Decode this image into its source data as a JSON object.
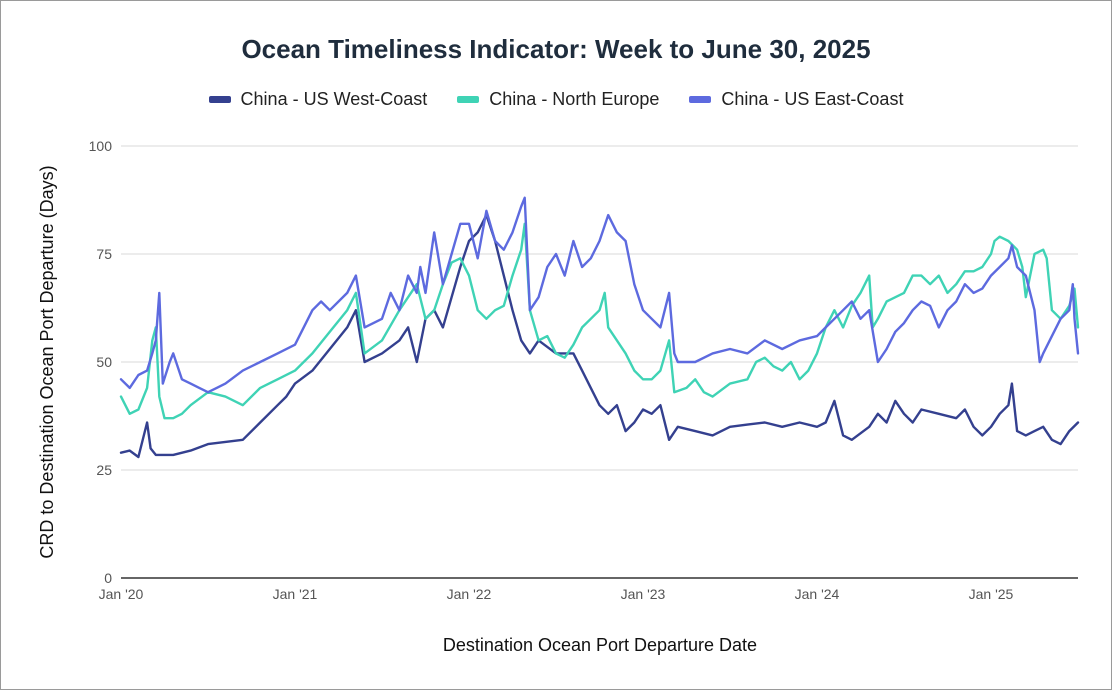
{
  "chart_data": {
    "type": "line",
    "title": "Ocean Timeliness Indicator: Week to June 30, 2025",
    "xlabel": "Destination Ocean Port Departure Date",
    "ylabel": "CRD to Destination Ocean Port Departure (Days)",
    "ylim": [
      0,
      100
    ],
    "yticks": [
      0,
      25,
      50,
      75,
      100
    ],
    "xlim": [
      2020.0,
      2025.5
    ],
    "xticks": [
      {
        "value": 2020.0,
        "label": "Jan '20"
      },
      {
        "value": 2021.0,
        "label": "Jan '21"
      },
      {
        "value": 2022.0,
        "label": "Jan '22"
      },
      {
        "value": 2023.0,
        "label": "Jan '23"
      },
      {
        "value": 2024.0,
        "label": "Jan '24"
      },
      {
        "value": 2025.0,
        "label": "Jan '25"
      }
    ],
    "grid": true,
    "legend_position": "top",
    "series": [
      {
        "name": "China - US West-Coast",
        "color": "#34408f",
        "points": [
          [
            2020.0,
            29
          ],
          [
            2020.05,
            29.5
          ],
          [
            2020.1,
            28
          ],
          [
            2020.15,
            36
          ],
          [
            2020.17,
            30
          ],
          [
            2020.2,
            28.5
          ],
          [
            2020.3,
            28.5
          ],
          [
            2020.4,
            29.5
          ],
          [
            2020.5,
            31
          ],
          [
            2020.6,
            31.5
          ],
          [
            2020.7,
            32
          ],
          [
            2020.8,
            36
          ],
          [
            2020.9,
            40
          ],
          [
            2020.95,
            42
          ],
          [
            2021.0,
            45
          ],
          [
            2021.1,
            48
          ],
          [
            2021.2,
            53
          ],
          [
            2021.3,
            58
          ],
          [
            2021.35,
            62
          ],
          [
            2021.4,
            50
          ],
          [
            2021.5,
            52
          ],
          [
            2021.6,
            55
          ],
          [
            2021.65,
            58
          ],
          [
            2021.7,
            50
          ],
          [
            2021.75,
            60
          ],
          [
            2021.8,
            62
          ],
          [
            2021.85,
            58
          ],
          [
            2021.9,
            65
          ],
          [
            2021.95,
            72
          ],
          [
            2022.0,
            78
          ],
          [
            2022.05,
            80
          ],
          [
            2022.1,
            84
          ],
          [
            2022.15,
            78
          ],
          [
            2022.2,
            70
          ],
          [
            2022.25,
            62
          ],
          [
            2022.3,
            55
          ],
          [
            2022.35,
            52
          ],
          [
            2022.4,
            55
          ],
          [
            2022.5,
            52
          ],
          [
            2022.6,
            52
          ],
          [
            2022.65,
            48
          ],
          [
            2022.7,
            44
          ],
          [
            2022.75,
            40
          ],
          [
            2022.8,
            38
          ],
          [
            2022.85,
            40
          ],
          [
            2022.9,
            34
          ],
          [
            2022.95,
            36
          ],
          [
            2023.0,
            39
          ],
          [
            2023.05,
            38
          ],
          [
            2023.1,
            40
          ],
          [
            2023.15,
            32
          ],
          [
            2023.2,
            35
          ],
          [
            2023.3,
            34
          ],
          [
            2023.4,
            33
          ],
          [
            2023.5,
            35
          ],
          [
            2023.6,
            35.5
          ],
          [
            2023.7,
            36
          ],
          [
            2023.8,
            35
          ],
          [
            2023.9,
            36
          ],
          [
            2024.0,
            35
          ],
          [
            2024.05,
            36
          ],
          [
            2024.1,
            41
          ],
          [
            2024.15,
            33
          ],
          [
            2024.2,
            32
          ],
          [
            2024.3,
            35
          ],
          [
            2024.35,
            38
          ],
          [
            2024.4,
            36
          ],
          [
            2024.45,
            41
          ],
          [
            2024.5,
            38
          ],
          [
            2024.55,
            36
          ],
          [
            2024.6,
            39
          ],
          [
            2024.7,
            38
          ],
          [
            2024.8,
            37
          ],
          [
            2024.85,
            39
          ],
          [
            2024.9,
            35
          ],
          [
            2024.95,
            33
          ],
          [
            2025.0,
            35
          ],
          [
            2025.05,
            38
          ],
          [
            2025.1,
            40
          ],
          [
            2025.12,
            45
          ],
          [
            2025.15,
            34
          ],
          [
            2025.2,
            33
          ],
          [
            2025.25,
            34
          ],
          [
            2025.3,
            35
          ],
          [
            2025.35,
            32
          ],
          [
            2025.4,
            31
          ],
          [
            2025.45,
            34
          ],
          [
            2025.5,
            36
          ]
        ]
      },
      {
        "name": "China - North Europe",
        "color": "#3fd3b5",
        "points": [
          [
            2020.0,
            42
          ],
          [
            2020.05,
            38
          ],
          [
            2020.1,
            39
          ],
          [
            2020.15,
            44
          ],
          [
            2020.18,
            55
          ],
          [
            2020.2,
            58
          ],
          [
            2020.22,
            42
          ],
          [
            2020.25,
            37
          ],
          [
            2020.3,
            37
          ],
          [
            2020.35,
            38
          ],
          [
            2020.4,
            40
          ],
          [
            2020.5,
            43
          ],
          [
            2020.6,
            42
          ],
          [
            2020.7,
            40
          ],
          [
            2020.8,
            44
          ],
          [
            2020.9,
            46
          ],
          [
            2021.0,
            48
          ],
          [
            2021.1,
            52
          ],
          [
            2021.2,
            57
          ],
          [
            2021.3,
            62
          ],
          [
            2021.35,
            66
          ],
          [
            2021.4,
            52
          ],
          [
            2021.5,
            55
          ],
          [
            2021.6,
            62
          ],
          [
            2021.7,
            68
          ],
          [
            2021.75,
            60
          ],
          [
            2021.8,
            62
          ],
          [
            2021.85,
            68
          ],
          [
            2021.9,
            73
          ],
          [
            2021.95,
            74
          ],
          [
            2022.0,
            70
          ],
          [
            2022.05,
            62
          ],
          [
            2022.1,
            60
          ],
          [
            2022.15,
            62
          ],
          [
            2022.2,
            63
          ],
          [
            2022.25,
            70
          ],
          [
            2022.3,
            76
          ],
          [
            2022.32,
            82
          ],
          [
            2022.35,
            62
          ],
          [
            2022.4,
            55
          ],
          [
            2022.45,
            56
          ],
          [
            2022.5,
            52
          ],
          [
            2022.55,
            51
          ],
          [
            2022.6,
            54
          ],
          [
            2022.65,
            58
          ],
          [
            2022.7,
            60
          ],
          [
            2022.75,
            62
          ],
          [
            2022.78,
            66
          ],
          [
            2022.8,
            58
          ],
          [
            2022.85,
            55
          ],
          [
            2022.9,
            52
          ],
          [
            2022.95,
            48
          ],
          [
            2023.0,
            46
          ],
          [
            2023.05,
            46
          ],
          [
            2023.1,
            48
          ],
          [
            2023.15,
            55
          ],
          [
            2023.18,
            43
          ],
          [
            2023.25,
            44
          ],
          [
            2023.3,
            46
          ],
          [
            2023.35,
            43
          ],
          [
            2023.4,
            42
          ],
          [
            2023.5,
            45
          ],
          [
            2023.6,
            46
          ],
          [
            2023.65,
            50
          ],
          [
            2023.7,
            51
          ],
          [
            2023.75,
            49
          ],
          [
            2023.8,
            48
          ],
          [
            2023.85,
            50
          ],
          [
            2023.9,
            46
          ],
          [
            2023.95,
            48
          ],
          [
            2024.0,
            52
          ],
          [
            2024.05,
            58
          ],
          [
            2024.1,
            62
          ],
          [
            2024.15,
            58
          ],
          [
            2024.2,
            63
          ],
          [
            2024.25,
            66
          ],
          [
            2024.3,
            70
          ],
          [
            2024.32,
            58
          ],
          [
            2024.35,
            60
          ],
          [
            2024.4,
            64
          ],
          [
            2024.5,
            66
          ],
          [
            2024.55,
            70
          ],
          [
            2024.6,
            70
          ],
          [
            2024.65,
            68
          ],
          [
            2024.7,
            70
          ],
          [
            2024.75,
            66
          ],
          [
            2024.8,
            68
          ],
          [
            2024.85,
            71
          ],
          [
            2024.9,
            71
          ],
          [
            2024.95,
            72
          ],
          [
            2025.0,
            75
          ],
          [
            2025.02,
            78
          ],
          [
            2025.05,
            79
          ],
          [
            2025.1,
            78
          ],
          [
            2025.15,
            76
          ],
          [
            2025.18,
            72
          ],
          [
            2025.2,
            65
          ],
          [
            2025.25,
            75
          ],
          [
            2025.3,
            76
          ],
          [
            2025.32,
            74
          ],
          [
            2025.35,
            62
          ],
          [
            2025.4,
            60
          ],
          [
            2025.45,
            63
          ],
          [
            2025.48,
            67
          ],
          [
            2025.5,
            58
          ]
        ]
      },
      {
        "name": "China - US East-Coast",
        "color": "#5d6adf",
        "points": [
          [
            2020.0,
            46
          ],
          [
            2020.05,
            44
          ],
          [
            2020.1,
            47
          ],
          [
            2020.15,
            48
          ],
          [
            2020.18,
            52
          ],
          [
            2020.2,
            55
          ],
          [
            2020.22,
            66
          ],
          [
            2020.24,
            45
          ],
          [
            2020.28,
            50
          ],
          [
            2020.3,
            52
          ],
          [
            2020.35,
            46
          ],
          [
            2020.4,
            45
          ],
          [
            2020.45,
            44
          ],
          [
            2020.5,
            43
          ],
          [
            2020.55,
            44
          ],
          [
            2020.6,
            45
          ],
          [
            2020.7,
            48
          ],
          [
            2020.8,
            50
          ],
          [
            2020.9,
            52
          ],
          [
            2021.0,
            54
          ],
          [
            2021.05,
            58
          ],
          [
            2021.1,
            62
          ],
          [
            2021.15,
            64
          ],
          [
            2021.2,
            62
          ],
          [
            2021.3,
            66
          ],
          [
            2021.35,
            70
          ],
          [
            2021.4,
            58
          ],
          [
            2021.5,
            60
          ],
          [
            2021.55,
            66
          ],
          [
            2021.6,
            62
          ],
          [
            2021.65,
            70
          ],
          [
            2021.7,
            66
          ],
          [
            2021.72,
            72
          ],
          [
            2021.75,
            66
          ],
          [
            2021.8,
            80
          ],
          [
            2021.85,
            68
          ],
          [
            2021.9,
            75
          ],
          [
            2021.95,
            82
          ],
          [
            2022.0,
            82
          ],
          [
            2022.05,
            74
          ],
          [
            2022.1,
            85
          ],
          [
            2022.15,
            78
          ],
          [
            2022.2,
            76
          ],
          [
            2022.25,
            80
          ],
          [
            2022.3,
            86
          ],
          [
            2022.32,
            88
          ],
          [
            2022.35,
            62
          ],
          [
            2022.4,
            65
          ],
          [
            2022.45,
            72
          ],
          [
            2022.5,
            75
          ],
          [
            2022.55,
            70
          ],
          [
            2022.6,
            78
          ],
          [
            2022.65,
            72
          ],
          [
            2022.7,
            74
          ],
          [
            2022.75,
            78
          ],
          [
            2022.8,
            84
          ],
          [
            2022.85,
            80
          ],
          [
            2022.9,
            78
          ],
          [
            2022.95,
            68
          ],
          [
            2023.0,
            62
          ],
          [
            2023.05,
            60
          ],
          [
            2023.1,
            58
          ],
          [
            2023.15,
            66
          ],
          [
            2023.18,
            52
          ],
          [
            2023.2,
            50
          ],
          [
            2023.3,
            50
          ],
          [
            2023.4,
            52
          ],
          [
            2023.5,
            53
          ],
          [
            2023.6,
            52
          ],
          [
            2023.7,
            55
          ],
          [
            2023.8,
            53
          ],
          [
            2023.9,
            55
          ],
          [
            2024.0,
            56
          ],
          [
            2024.05,
            58
          ],
          [
            2024.1,
            60
          ],
          [
            2024.15,
            62
          ],
          [
            2024.2,
            64
          ],
          [
            2024.25,
            60
          ],
          [
            2024.3,
            62
          ],
          [
            2024.35,
            50
          ],
          [
            2024.4,
            53
          ],
          [
            2024.45,
            57
          ],
          [
            2024.5,
            59
          ],
          [
            2024.55,
            62
          ],
          [
            2024.6,
            64
          ],
          [
            2024.65,
            63
          ],
          [
            2024.7,
            58
          ],
          [
            2024.75,
            62
          ],
          [
            2024.8,
            64
          ],
          [
            2024.85,
            68
          ],
          [
            2024.9,
            66
          ],
          [
            2024.95,
            67
          ],
          [
            2025.0,
            70
          ],
          [
            2025.05,
            72
          ],
          [
            2025.1,
            74
          ],
          [
            2025.12,
            77
          ],
          [
            2025.15,
            72
          ],
          [
            2025.2,
            70
          ],
          [
            2025.25,
            62
          ],
          [
            2025.28,
            50
          ],
          [
            2025.3,
            52
          ],
          [
            2025.35,
            56
          ],
          [
            2025.4,
            60
          ],
          [
            2025.45,
            62
          ],
          [
            2025.47,
            68
          ],
          [
            2025.48,
            60
          ],
          [
            2025.5,
            52
          ]
        ]
      }
    ]
  }
}
